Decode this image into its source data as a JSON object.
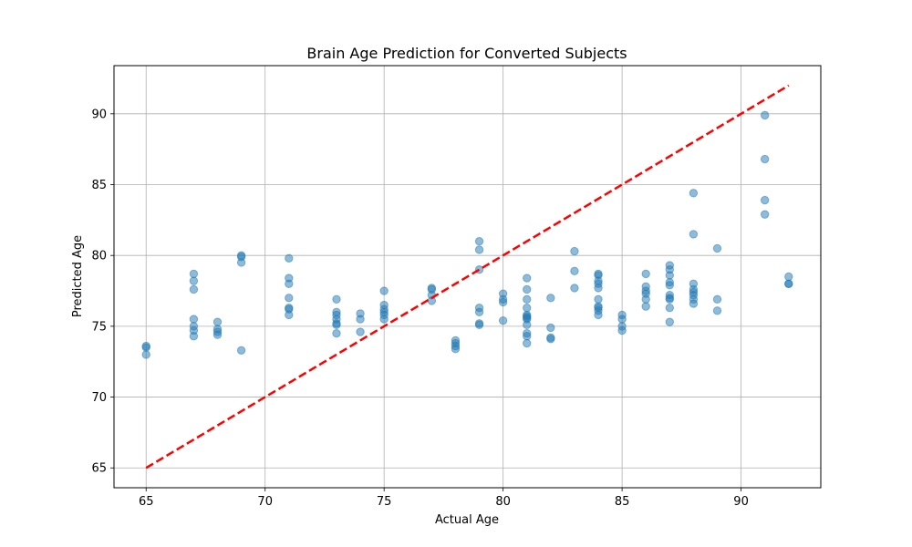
{
  "chart_data": {
    "type": "scatter",
    "title": "Brain Age Prediction for Converted Subjects",
    "xlabel": "Actual Age",
    "ylabel": "Predicted Age",
    "xlim": [
      63.65,
      93.35
    ],
    "ylim": [
      63.6,
      93.4
    ],
    "xticks": [
      65,
      70,
      75,
      80,
      85,
      90
    ],
    "yticks": [
      65,
      70,
      75,
      80,
      85,
      90
    ],
    "grid": true,
    "point_color": "#1f77b4",
    "point_alpha": 0.5,
    "line_color": "#ff0000",
    "reference_line": {
      "name": "identity",
      "x": [
        65,
        92
      ],
      "y": [
        65,
        92
      ],
      "style": "dashed"
    },
    "series": [
      {
        "name": "Converted subjects",
        "points": [
          [
            65,
            73.6
          ],
          [
            65,
            73.5
          ],
          [
            65,
            73.0
          ],
          [
            67,
            78.7
          ],
          [
            67,
            78.2
          ],
          [
            67,
            77.6
          ],
          [
            67,
            75.5
          ],
          [
            67,
            75.0
          ],
          [
            67,
            74.7
          ],
          [
            67,
            74.3
          ],
          [
            68,
            75.3
          ],
          [
            68,
            74.8
          ],
          [
            68,
            74.6
          ],
          [
            68,
            74.4
          ],
          [
            69,
            80.0
          ],
          [
            69,
            79.9
          ],
          [
            69,
            79.5
          ],
          [
            69,
            73.3
          ],
          [
            71,
            79.8
          ],
          [
            71,
            78.4
          ],
          [
            71,
            78.0
          ],
          [
            71,
            77.0
          ],
          [
            71,
            76.3
          ],
          [
            71,
            76.2
          ],
          [
            71,
            75.8
          ],
          [
            73,
            76.9
          ],
          [
            73,
            76.0
          ],
          [
            73,
            75.8
          ],
          [
            73,
            75.5
          ],
          [
            73,
            75.2
          ],
          [
            73,
            75.1
          ],
          [
            73,
            74.5
          ],
          [
            74,
            75.9
          ],
          [
            74,
            75.5
          ],
          [
            74,
            74.6
          ],
          [
            75,
            77.5
          ],
          [
            75,
            76.5
          ],
          [
            75,
            76.2
          ],
          [
            75,
            76.0
          ],
          [
            75,
            75.8
          ],
          [
            75,
            75.5
          ],
          [
            77,
            77.7
          ],
          [
            77,
            77.6
          ],
          [
            77,
            77.2
          ],
          [
            77,
            76.8
          ],
          [
            78,
            74.0
          ],
          [
            78,
            73.8
          ],
          [
            78,
            73.6
          ],
          [
            78,
            73.4
          ],
          [
            79,
            81.0
          ],
          [
            79,
            80.4
          ],
          [
            79,
            79.0
          ],
          [
            79,
            76.3
          ],
          [
            79,
            76.0
          ],
          [
            79,
            75.2
          ],
          [
            79,
            75.1
          ],
          [
            80,
            77.3
          ],
          [
            80,
            76.9
          ],
          [
            80,
            76.7
          ],
          [
            80,
            75.4
          ],
          [
            81,
            78.4
          ],
          [
            81,
            77.6
          ],
          [
            81,
            76.9
          ],
          [
            81,
            76.3
          ],
          [
            81,
            75.8
          ],
          [
            81,
            75.7
          ],
          [
            81,
            75.6
          ],
          [
            81,
            75.5
          ],
          [
            81,
            75.1
          ],
          [
            81,
            74.5
          ],
          [
            81,
            74.3
          ],
          [
            81,
            73.8
          ],
          [
            82,
            77.0
          ],
          [
            82,
            74.9
          ],
          [
            82,
            74.2
          ],
          [
            82,
            74.1
          ],
          [
            83,
            80.3
          ],
          [
            83,
            78.9
          ],
          [
            83,
            77.7
          ],
          [
            84,
            78.7
          ],
          [
            84,
            78.6
          ],
          [
            84,
            78.2
          ],
          [
            84,
            78.0
          ],
          [
            84,
            77.7
          ],
          [
            84,
            76.9
          ],
          [
            84,
            76.4
          ],
          [
            84,
            76.3
          ],
          [
            84,
            76.1
          ],
          [
            84,
            75.8
          ],
          [
            85,
            75.8
          ],
          [
            85,
            75.5
          ],
          [
            85,
            75.0
          ],
          [
            85,
            74.7
          ],
          [
            86,
            78.7
          ],
          [
            86,
            77.8
          ],
          [
            86,
            77.5
          ],
          [
            86,
            77.3
          ],
          [
            86,
            76.9
          ],
          [
            86,
            76.4
          ],
          [
            87,
            79.3
          ],
          [
            87,
            79.0
          ],
          [
            87,
            78.6
          ],
          [
            87,
            78.1
          ],
          [
            87,
            77.9
          ],
          [
            87,
            77.2
          ],
          [
            87,
            77.0
          ],
          [
            87,
            76.9
          ],
          [
            87,
            76.3
          ],
          [
            87,
            75.3
          ],
          [
            88,
            84.4
          ],
          [
            88,
            81.5
          ],
          [
            88,
            78.0
          ],
          [
            88,
            77.6
          ],
          [
            88,
            77.4
          ],
          [
            88,
            77.2
          ],
          [
            88,
            76.9
          ],
          [
            88,
            76.6
          ],
          [
            89,
            80.5
          ],
          [
            89,
            76.9
          ],
          [
            89,
            76.1
          ],
          [
            91,
            89.9
          ],
          [
            91,
            86.8
          ],
          [
            91,
            83.9
          ],
          [
            91,
            82.9
          ],
          [
            92,
            78.5
          ],
          [
            92,
            78.0
          ],
          [
            92,
            78.0
          ]
        ]
      }
    ]
  }
}
